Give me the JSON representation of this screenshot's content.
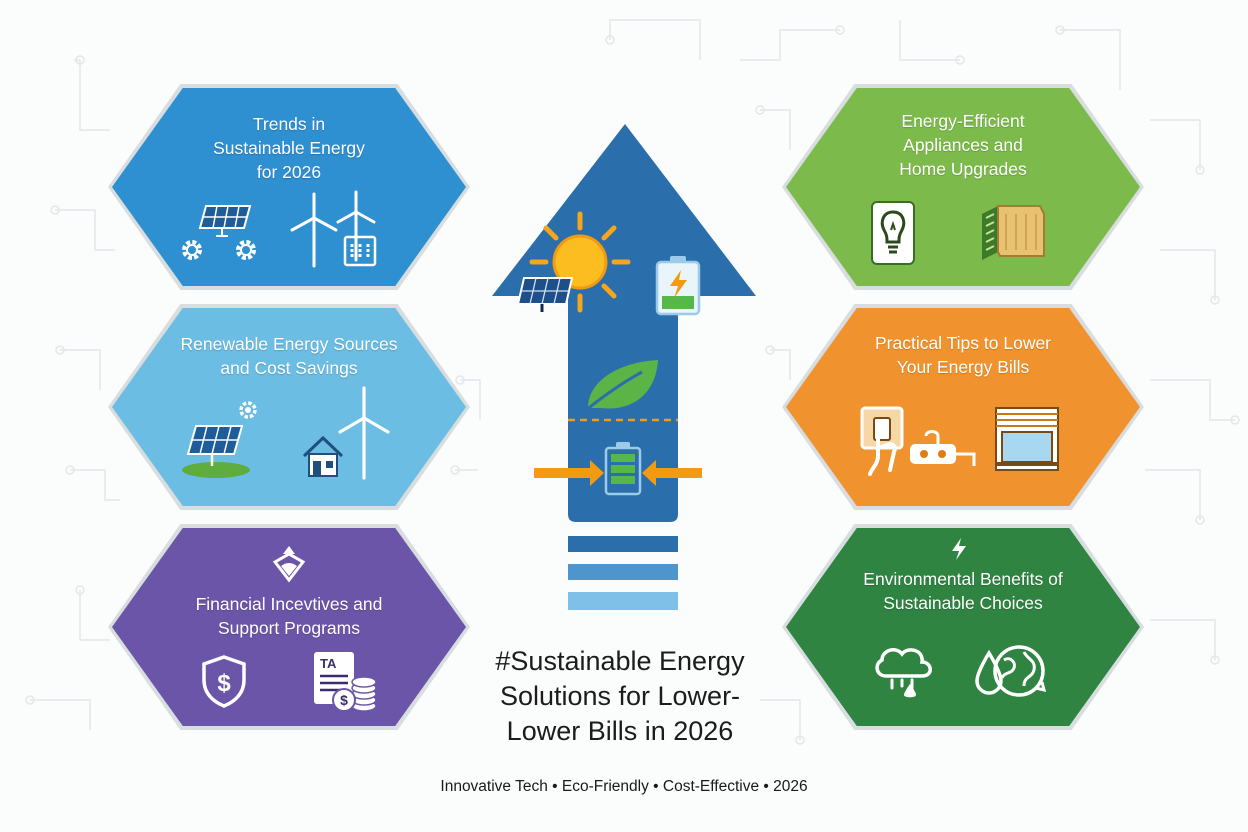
{
  "panels": {
    "trends": {
      "title_lines": [
        "Trends in",
        "Sustainable Energy",
        "for 2026"
      ],
      "color": "#2e8fd1",
      "icons": [
        "solar-panel-icon",
        "gear-icon",
        "wind-turbine-icon",
        "building-icon"
      ]
    },
    "renewable": {
      "title_lines": [
        "Renewable Energy Sources",
        "and Cost Savings"
      ],
      "color": "#6bbde3",
      "icons": [
        "solar-panel-icon",
        "gear-icon",
        "house-icon",
        "wind-turbine-icon"
      ]
    },
    "financial": {
      "title_lines": [
        "Financial Incevtives and",
        "Support Programs"
      ],
      "color": "#6b55a8",
      "icons": [
        "diamond-badge-icon",
        "shield-dollar-icon",
        "tax-document-icon",
        "coins-icon"
      ],
      "tax_label": "TA"
    },
    "appliances": {
      "title_lines": [
        "Energy-Efficient",
        "Appliances and",
        "Home Upgrades"
      ],
      "color": "#7dba4c",
      "icons": [
        "lightbulb-icon",
        "insulation-icon"
      ]
    },
    "tips": {
      "title_lines": [
        "Practical Tips to Lower",
        "Your Energy Bills"
      ],
      "color": "#f0932e",
      "icons": [
        "hand-switch-icon",
        "power-strip-icon",
        "window-icon"
      ]
    },
    "environmental": {
      "title_lines": [
        "Environmental Benefits of",
        "Sustainable Choices"
      ],
      "color": "#2f8442",
      "icons": [
        "lightning-icon",
        "cloud-rain-icon",
        "water-drop-icon",
        "globe-recycle-icon"
      ]
    }
  },
  "arrow": {
    "color": "#2a6fab",
    "stripe_colors": [
      "#2a6fab",
      "#4d95cc",
      "#7ec0e8"
    ],
    "icons": [
      "sun-icon",
      "solar-panel-icon",
      "battery-charging-icon",
      "leaf-icon",
      "battery-icon",
      "compress-arrows-icon"
    ]
  },
  "center_title_lines": [
    "#Sustainable Energy",
    "Solutions for Lower-",
    "Lower Bills in 2026"
  ],
  "footer": "Innovative Tech • Eco-Friendly • Cost-Effective • 2026"
}
